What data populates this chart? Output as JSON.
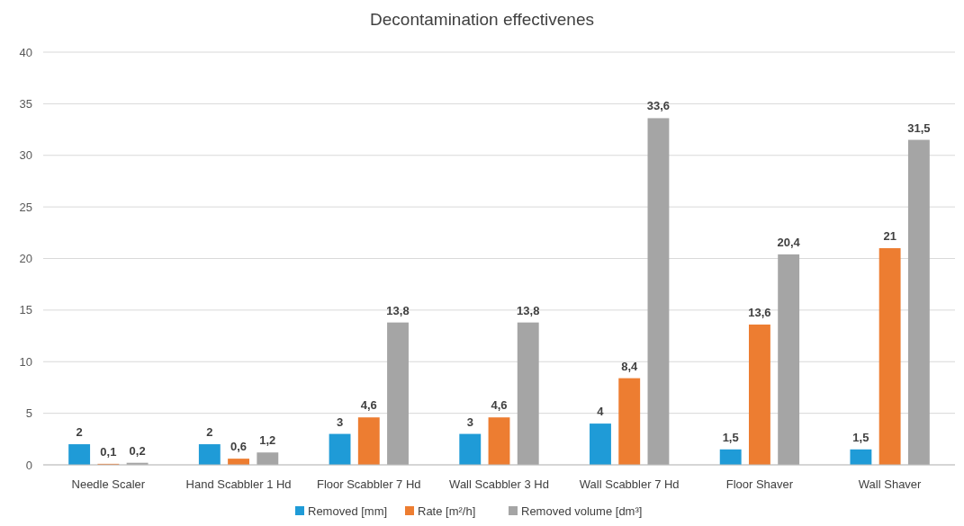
{
  "chart_data": {
    "type": "bar",
    "title": "Decontamination effectivenes",
    "categories": [
      "Needle Scaler",
      "Hand Scabbler 1 Hd",
      "Floor Scabbler 7 Hd",
      "Wall Scabbler 3 Hd",
      "Wall Scabbler 7 Hd",
      "Floor Shaver",
      "Wall Shaver"
    ],
    "series": [
      {
        "name": "Removed [mm]",
        "color": "#1f9bd7",
        "values": [
          2,
          2,
          3,
          3,
          4,
          1.5,
          1.5
        ],
        "value_labels": [
          "2",
          "2",
          "3",
          "3",
          "4",
          "1,5",
          "1,5"
        ]
      },
      {
        "name": "Rate [m²/h]",
        "color": "#ed7d31",
        "values": [
          0.1,
          0.6,
          4.6,
          4.6,
          8.4,
          13.6,
          21
        ],
        "value_labels": [
          "0,1",
          "0,6",
          "4,6",
          "4,6",
          "8,4",
          "13,6",
          "21"
        ]
      },
      {
        "name": "Removed volume [dm³]",
        "color": "#a5a5a5",
        "values": [
          0.2,
          1.2,
          13.8,
          13.8,
          33.6,
          20.4,
          31.5
        ],
        "value_labels": [
          "0,2",
          "1,2",
          "13,8",
          "13,8",
          "33,6",
          "20,4",
          "31,5"
        ]
      }
    ],
    "ylim": [
      0,
      40
    ],
    "yticks": [
      0,
      5,
      10,
      15,
      20,
      25,
      30,
      35,
      40
    ],
    "grid": "y",
    "legend": "bottom"
  }
}
